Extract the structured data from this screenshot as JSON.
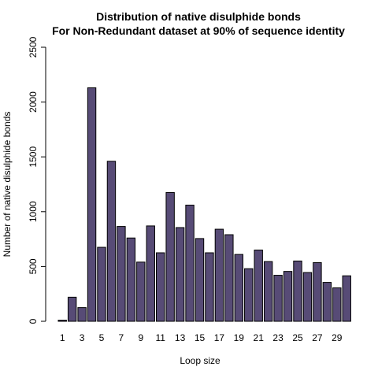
{
  "chart_data": {
    "type": "bar",
    "title": "Distribution of native disulphide bonds",
    "subtitle": "For Non-Redundant dataset at 90% of sequence identity",
    "xlabel": "Loop size",
    "ylabel": "Number of native disulphide bonds",
    "ylim": [
      0,
      2500
    ],
    "yticks": [
      0,
      500,
      1000,
      1500,
      2000,
      2500
    ],
    "grid": false,
    "bar_color": "#574b76",
    "categories": [
      1,
      2,
      3,
      4,
      5,
      6,
      7,
      8,
      9,
      10,
      11,
      12,
      13,
      14,
      15,
      16,
      17,
      18,
      19,
      20,
      21,
      22,
      23,
      24,
      25,
      26,
      27,
      28,
      29,
      30
    ],
    "x_tick_labels": [
      "1",
      "3",
      "5",
      "7",
      "9",
      "11",
      "13",
      "15",
      "17",
      "19",
      "21",
      "23",
      "25",
      "27",
      "29"
    ],
    "values": [
      10,
      220,
      125,
      2130,
      675,
      1460,
      865,
      760,
      540,
      870,
      625,
      1175,
      855,
      1060,
      755,
      625,
      840,
      790,
      610,
      480,
      650,
      545,
      420,
      455,
      550,
      445,
      535,
      355,
      305,
      415
    ]
  }
}
